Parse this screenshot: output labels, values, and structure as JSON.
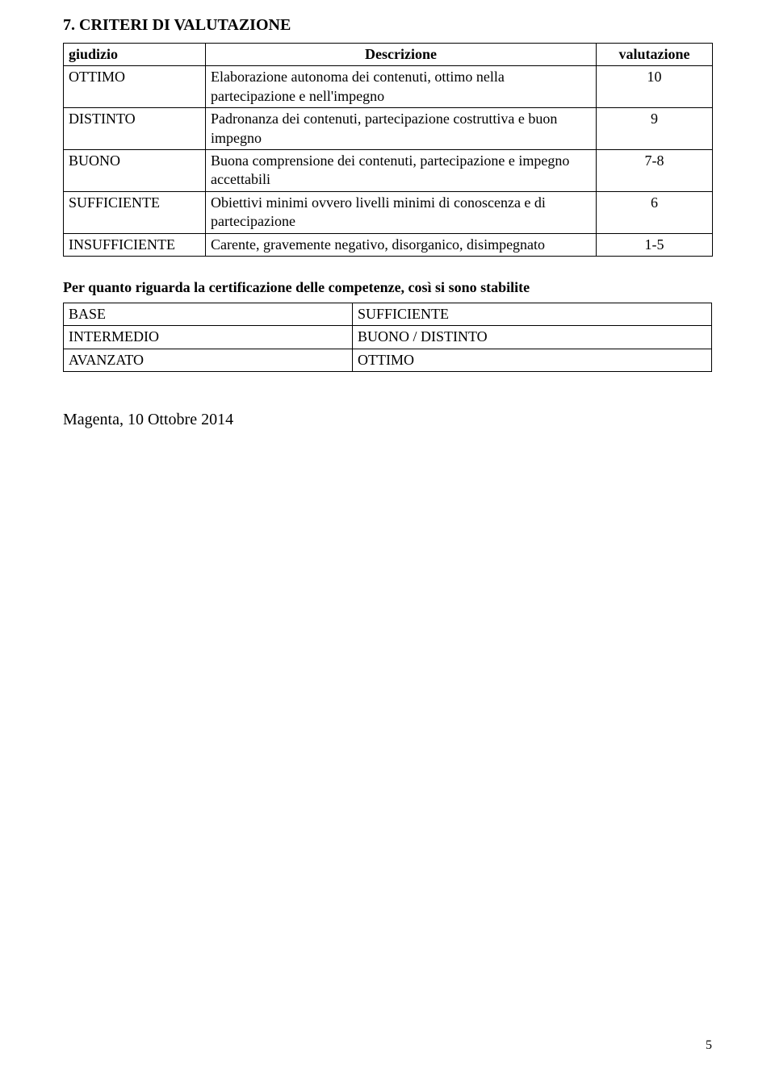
{
  "heading": "7. CRITERI DI VALUTAZIONE",
  "table1": {
    "headers": {
      "c1": "giudizio",
      "c2": "Descrizione",
      "c3": "valutazione"
    },
    "rows": [
      {
        "c1": "OTTIMO",
        "c2": "Elaborazione autonoma dei contenuti, ottimo nella partecipazione e nell'impegno",
        "c3": "10"
      },
      {
        "c1": "DISTINTO",
        "c2": "Padronanza dei contenuti, partecipazione costruttiva e buon impegno",
        "c3": "9"
      },
      {
        "c1": "BUONO",
        "c2": "Buona comprensione dei contenuti, partecipazione e impegno accettabili",
        "c3": "7-8"
      },
      {
        "c1": "SUFFICIENTE",
        "c2": "Obiettivi minimi ovvero livelli minimi di conoscenza e di partecipazione",
        "c3": "6"
      },
      {
        "c1": "INSUFFICIENTE",
        "c2": "Carente, gravemente negativo, disorganico, disimpegnato",
        "c3": "1-5"
      }
    ]
  },
  "subheading": "Per quanto riguarda la certificazione delle competenze, così si sono stabilite",
  "table2": {
    "rows": [
      {
        "c1": "BASE",
        "c2": "SUFFICIENTE"
      },
      {
        "c1": "INTERMEDIO",
        "c2": "BUONO / DISTINTO"
      },
      {
        "c1": "AVANZATO",
        "c2": "OTTIMO"
      }
    ]
  },
  "signoff": "Magenta,  10 Ottobre 2014",
  "page_number": "5"
}
